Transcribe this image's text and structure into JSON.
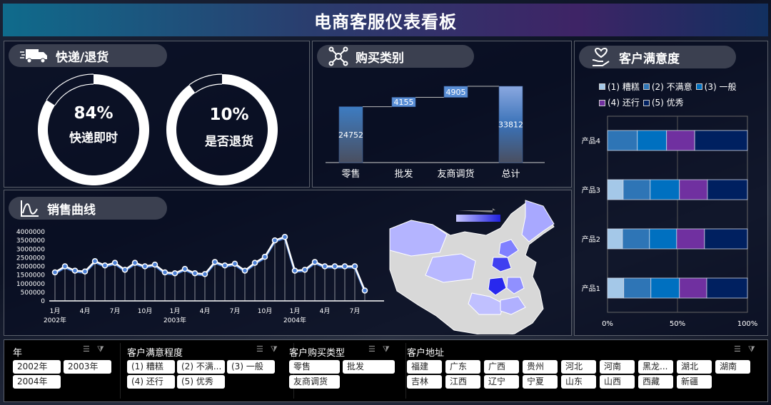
{
  "title": "电商客服仪表看板",
  "delivery": {
    "title": "快递/退货",
    "icon": "truck-icon",
    "gauges": [
      {
        "value_label": "84%",
        "label": "快递即时",
        "percent": 84
      },
      {
        "value_label": "10%",
        "label": "是否退货",
        "percent": 10
      }
    ]
  },
  "purchase": {
    "title": "购买类别",
    "icon": "network-icon"
  },
  "satisfaction": {
    "title": "客户满意度",
    "icon": "heart-hand-icon"
  },
  "sales": {
    "title": "销售曲线",
    "icon": "curve-icon"
  },
  "chart_data": [
    {
      "type": "waterfall",
      "categories": [
        "零售",
        "批发",
        "友商调货",
        "总计"
      ],
      "values": [
        24752,
        4155,
        4905,
        33812
      ],
      "labels": [
        "24752",
        "4155",
        "4905",
        "33812"
      ],
      "colors": {
        "bar": "#3d7cc2",
        "total": "#7f9fd6"
      }
    },
    {
      "type": "line",
      "x_month_labels": [
        "1月",
        "4月",
        "7月",
        "10月",
        "1月",
        "4月",
        "7月",
        "10月",
        "1月",
        "4月",
        "7月"
      ],
      "x_year_labels": [
        "2002年",
        "2003年",
        "2004年"
      ],
      "y_tick_labels": [
        "4000000",
        "3500000",
        "3000000",
        "2500000",
        "2000000",
        "1500000",
        "1000000",
        "500000",
        "0"
      ],
      "ylim": [
        0,
        4000000
      ],
      "x": [
        "2002-01",
        "2002-02",
        "2002-03",
        "2002-04",
        "2002-05",
        "2002-06",
        "2002-07",
        "2002-08",
        "2002-09",
        "2002-10",
        "2002-11",
        "2002-12",
        "2003-01",
        "2003-02",
        "2003-03",
        "2003-04",
        "2003-05",
        "2003-06",
        "2003-07",
        "2003-08",
        "2003-09",
        "2003-10",
        "2003-11",
        "2003-12",
        "2004-01",
        "2004-02",
        "2004-03",
        "2004-04",
        "2004-05",
        "2004-06",
        "2004-07",
        "2004-08"
      ],
      "values": [
        1650000,
        2000000,
        1750000,
        1700000,
        2300000,
        2050000,
        2200000,
        1800000,
        2200000,
        2000000,
        2100000,
        1650000,
        1600000,
        1850000,
        1600000,
        1550000,
        2250000,
        2050000,
        2150000,
        1750000,
        2200000,
        2550000,
        3500000,
        3700000,
        1750000,
        1800000,
        2250000,
        2000000,
        2000000,
        2000000,
        2000000,
        600000
      ],
      "color": "#4a7fd6"
    },
    {
      "type": "bar",
      "stacked": "100%",
      "orientation": "horizontal",
      "categories": [
        "产品4",
        "产品3",
        "产品2",
        "产品1"
      ],
      "x_tick_labels": [
        "0%",
        "50%",
        "100%"
      ],
      "legend_position": "top",
      "series": [
        {
          "name": "(1) 糟糕",
          "color": "#a4c8e8",
          "values": [
            0,
            11.2,
            10.7,
            11.6
          ]
        },
        {
          "name": "(2) 不满意",
          "color": "#2e75b6",
          "values": [
            21.3,
            19.3,
            19.3,
            19.4
          ]
        },
        {
          "name": "(3) 一般",
          "color": "#0070c0",
          "values": [
            20.9,
            20.9,
            19.4,
            20.4
          ]
        },
        {
          "name": "(4) 还行",
          "color": "#7030a0",
          "values": [
            20.1,
            20.0,
            19.9,
            19.5
          ]
        },
        {
          "name": "(5) 优秀",
          "color": "#002060",
          "values": [
            37.7,
            28.6,
            30.7,
            29.1
          ]
        }
      ]
    }
  ],
  "filters": [
    {
      "title": "年",
      "items": [
        "2002年",
        "2003年",
        "2004年"
      ]
    },
    {
      "title": "客户满意程度",
      "items": [
        "(1) 糟糕",
        "(2) 不满...",
        "(3) 一般",
        "(4) 还行",
        "(5) 优秀"
      ]
    },
    {
      "title": "客户购买类型",
      "items": [
        "零售",
        "批发",
        "友商调货"
      ]
    },
    {
      "title": "客户地址",
      "items": [
        "福建",
        "广东",
        "广西",
        "贵州",
        "河北",
        "河南",
        "黑龙...",
        "湖北",
        "湖南",
        "吉林",
        "江西",
        "辽宁",
        "宁夏",
        "山东",
        "山西",
        "西藏",
        "新疆"
      ]
    }
  ]
}
